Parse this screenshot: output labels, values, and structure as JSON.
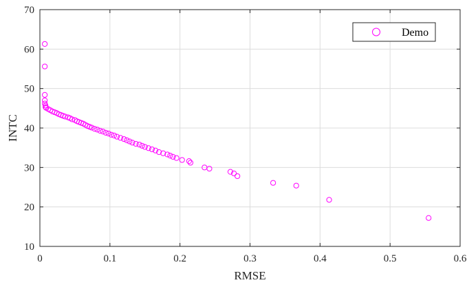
{
  "chart_data": {
    "type": "scatter",
    "title": "",
    "xlabel": "RMSE",
    "ylabel": "INTC",
    "xlim": [
      0,
      0.6
    ],
    "ylim": [
      10,
      70
    ],
    "xticks": [
      0,
      0.1,
      0.2,
      0.3,
      0.4,
      0.5,
      0.6
    ],
    "yticks": [
      10,
      20,
      30,
      40,
      50,
      60,
      70
    ],
    "xtick_labels": [
      "0",
      "0.1",
      "0.2",
      "0.3",
      "0.4",
      "0.5",
      "0.6"
    ],
    "ytick_labels": [
      "10",
      "20",
      "30",
      "40",
      "50",
      "60",
      "70"
    ],
    "grid": true,
    "legend_position": "top-right",
    "series": [
      {
        "name": "Demo",
        "color": "#ff00ff",
        "marker": "circle-open",
        "points": [
          [
            0.007,
            61.3
          ],
          [
            0.007,
            55.6
          ],
          [
            0.007,
            48.4
          ],
          [
            0.007,
            47.0
          ],
          [
            0.007,
            46.2
          ],
          [
            0.008,
            45.7
          ],
          [
            0.008,
            45.3
          ],
          [
            0.009,
            45.1
          ],
          [
            0.012,
            44.8
          ],
          [
            0.015,
            44.5
          ],
          [
            0.018,
            44.2
          ],
          [
            0.021,
            44.0
          ],
          [
            0.024,
            43.8
          ],
          [
            0.027,
            43.5
          ],
          [
            0.03,
            43.3
          ],
          [
            0.033,
            43.1
          ],
          [
            0.036,
            42.9
          ],
          [
            0.04,
            42.7
          ],
          [
            0.043,
            42.5
          ],
          [
            0.046,
            42.2
          ],
          [
            0.05,
            42.0
          ],
          [
            0.053,
            41.7
          ],
          [
            0.056,
            41.5
          ],
          [
            0.059,
            41.3
          ],
          [
            0.062,
            41.1
          ],
          [
            0.065,
            40.8
          ],
          [
            0.068,
            40.5
          ],
          [
            0.071,
            40.3
          ],
          [
            0.074,
            40.1
          ],
          [
            0.078,
            39.8
          ],
          [
            0.082,
            39.6
          ],
          [
            0.086,
            39.3
          ],
          [
            0.09,
            39.1
          ],
          [
            0.094,
            38.8
          ],
          [
            0.098,
            38.6
          ],
          [
            0.102,
            38.3
          ],
          [
            0.106,
            38.1
          ],
          [
            0.11,
            37.8
          ],
          [
            0.115,
            37.5
          ],
          [
            0.12,
            37.2
          ],
          [
            0.124,
            36.9
          ],
          [
            0.128,
            36.6
          ],
          [
            0.132,
            36.3
          ],
          [
            0.137,
            36.0
          ],
          [
            0.142,
            35.8
          ],
          [
            0.146,
            35.5
          ],
          [
            0.15,
            35.2
          ],
          [
            0.155,
            34.9
          ],
          [
            0.16,
            34.6
          ],
          [
            0.165,
            34.3
          ],
          [
            0.17,
            33.9
          ],
          [
            0.176,
            33.6
          ],
          [
            0.182,
            33.3
          ],
          [
            0.186,
            33.0
          ],
          [
            0.19,
            32.7
          ],
          [
            0.195,
            32.4
          ],
          [
            0.203,
            31.9
          ],
          [
            0.213,
            31.6
          ],
          [
            0.215,
            31.2
          ],
          [
            0.235,
            30.0
          ],
          [
            0.242,
            29.7
          ],
          [
            0.272,
            28.9
          ],
          [
            0.277,
            28.5
          ],
          [
            0.282,
            27.8
          ],
          [
            0.333,
            26.1
          ],
          [
            0.366,
            25.4
          ],
          [
            0.413,
            21.8
          ],
          [
            0.555,
            17.2
          ]
        ]
      }
    ]
  }
}
